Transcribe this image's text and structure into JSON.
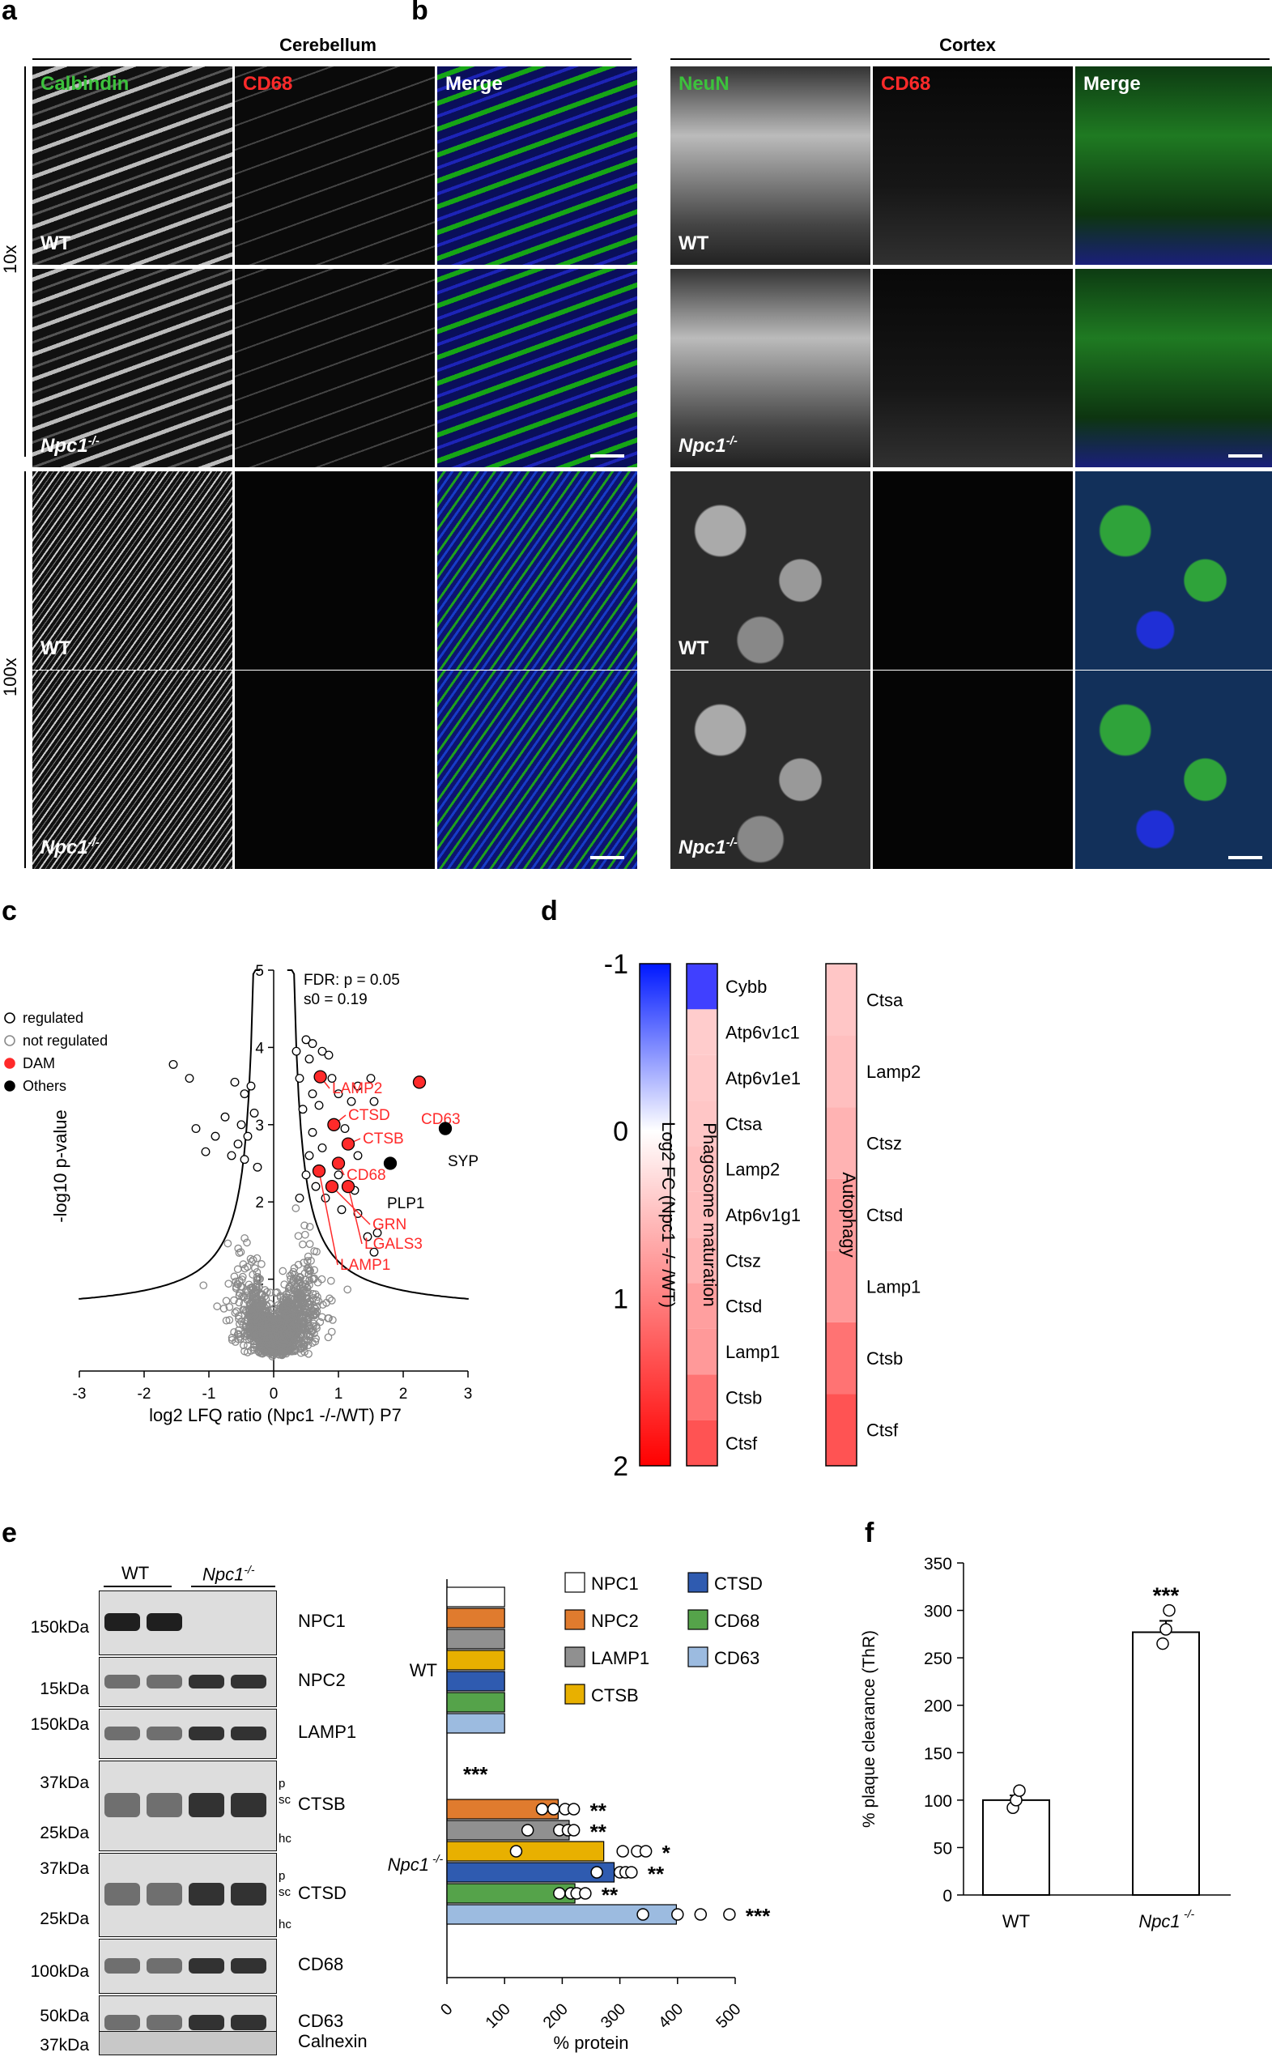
{
  "panel_labels": {
    "a": "a",
    "b": "b",
    "c": "c",
    "d": "d",
    "e": "e",
    "f": "f"
  },
  "panel_a": {
    "region": "Cerebellum",
    "channels": [
      "Calbindin",
      "CD68",
      "Merge"
    ],
    "magnifications": [
      "10x",
      "100x"
    ],
    "genotypes": [
      "WT",
      "Npc1",
      "-/-"
    ]
  },
  "panel_b": {
    "region": "Cortex",
    "channels": [
      "NeuN",
      "CD68",
      "Merge"
    ]
  },
  "colors": {
    "green": "#3cc23c",
    "red": "#ff2a2a",
    "blue": "#1f2fd6",
    "grey_point": "#8a8a8a",
    "npc2": "#e07b2e",
    "lamp1": "#909090",
    "ctsb": "#e8b000",
    "ctsd": "#2f5bb0",
    "cd68": "#55a34a",
    "cd63": "#9cbbe0",
    "npc1": "#ffffff"
  },
  "panel_c": {
    "chart_data": {
      "type": "scatter",
      "xlabel": "log2 LFQ ratio (Npc1 -/-/WT) P7",
      "ylabel": "-log10 p-value",
      "xticks": [
        -3,
        -2,
        -1,
        0,
        1,
        2,
        3
      ],
      "yticks": [
        1,
        2,
        3,
        4,
        5
      ],
      "xlim": [
        -3,
        3
      ],
      "ylim": [
        0,
        5
      ],
      "annotations": [
        "FDR: p = 0.05",
        "s0 = 0.19"
      ],
      "legend": [
        "regulated",
        "not regulated",
        "DAM",
        "Others"
      ],
      "labeled_points": [
        {
          "name": "LAMP2",
          "x": 0.72,
          "y": 3.62,
          "group": "DAM"
        },
        {
          "name": "CTSD",
          "x": 0.93,
          "y": 3.0,
          "group": "DAM"
        },
        {
          "name": "CTSB",
          "x": 1.15,
          "y": 2.75,
          "group": "DAM"
        },
        {
          "name": "CD63",
          "x": 2.25,
          "y": 3.55,
          "group": "DAM"
        },
        {
          "name": "CD68",
          "x": 1.0,
          "y": 2.5,
          "group": "DAM"
        },
        {
          "name": "GRN",
          "x": 0.9,
          "y": 2.2,
          "group": "DAM"
        },
        {
          "name": "LGALS3",
          "x": 1.15,
          "y": 2.2,
          "group": "DAM"
        },
        {
          "name": "LAMP1",
          "x": 0.7,
          "y": 2.4,
          "group": "DAM"
        },
        {
          "name": "SYP",
          "x": 2.65,
          "y": 2.95,
          "group": "Others"
        },
        {
          "name": "PLP1",
          "x": 1.8,
          "y": 2.5,
          "group": "Others"
        }
      ],
      "regulated_points": [
        {
          "x": -1.55,
          "y": 3.78
        },
        {
          "x": -1.3,
          "y": 3.6
        },
        {
          "x": -0.6,
          "y": 3.55
        },
        {
          "x": -0.45,
          "y": 3.4
        },
        {
          "x": -0.35,
          "y": 3.5
        },
        {
          "x": -1.2,
          "y": 2.95
        },
        {
          "x": -0.9,
          "y": 2.85
        },
        {
          "x": -0.75,
          "y": 3.1
        },
        {
          "x": -1.05,
          "y": 2.65
        },
        {
          "x": -0.65,
          "y": 2.6
        },
        {
          "x": -0.55,
          "y": 2.75
        },
        {
          "x": -0.45,
          "y": 2.55
        },
        {
          "x": -0.4,
          "y": 2.85
        },
        {
          "x": -0.3,
          "y": 3.15
        },
        {
          "x": -0.5,
          "y": 3.0
        },
        {
          "x": -0.25,
          "y": 2.45
        },
        {
          "x": 0.35,
          "y": 3.95
        },
        {
          "x": 0.5,
          "y": 4.1
        },
        {
          "x": 0.6,
          "y": 4.05
        },
        {
          "x": 0.55,
          "y": 3.85
        },
        {
          "x": 0.75,
          "y": 3.95
        },
        {
          "x": 0.85,
          "y": 3.9
        },
        {
          "x": 0.4,
          "y": 3.6
        },
        {
          "x": 0.6,
          "y": 3.4
        },
        {
          "x": 0.7,
          "y": 3.25
        },
        {
          "x": 0.45,
          "y": 3.2
        },
        {
          "x": 1.2,
          "y": 3.3
        },
        {
          "x": 1.3,
          "y": 3.5
        },
        {
          "x": 1.5,
          "y": 3.6
        },
        {
          "x": 1.55,
          "y": 3.3
        },
        {
          "x": 1.0,
          "y": 3.4
        },
        {
          "x": 0.9,
          "y": 3.6
        },
        {
          "x": 0.6,
          "y": 2.9
        },
        {
          "x": 0.75,
          "y": 2.7
        },
        {
          "x": 1.1,
          "y": 2.95
        },
        {
          "x": 1.3,
          "y": 2.6
        },
        {
          "x": 0.55,
          "y": 2.6
        },
        {
          "x": 0.65,
          "y": 2.2
        },
        {
          "x": 0.8,
          "y": 2.05
        },
        {
          "x": 1.05,
          "y": 1.9
        },
        {
          "x": 1.3,
          "y": 1.85
        },
        {
          "x": 1.45,
          "y": 1.55
        },
        {
          "x": 1.6,
          "y": 1.6
        },
        {
          "x": 1.55,
          "y": 1.35
        },
        {
          "x": 0.5,
          "y": 2.35
        },
        {
          "x": 0.4,
          "y": 2.05
        },
        {
          "x": 1.25,
          "y": 2.15
        },
        {
          "x": 1.0,
          "y": 2.35
        }
      ],
      "bg_points": {
        "count": 1500
      }
    }
  },
  "panel_d": {
    "chart_data": {
      "type": "heatmap",
      "colorbar_title": "Log2 FC (Npc1 -/- /WT)",
      "colorbar_ticks": [
        -1,
        0,
        1,
        2
      ],
      "colorbar_range": [
        -1,
        2
      ],
      "columns": [
        {
          "title": "Phagosome maturation",
          "genes": [
            "Cybb",
            "Atp6v1c1",
            "Atp6v1e1",
            "Ctsa",
            "Lamp2",
            "Atp6v1g1",
            "Ctsz",
            "Ctsd",
            "Lamp1",
            "Ctsb",
            "Ctsf"
          ],
          "values": [
            -0.85,
            0.4,
            0.42,
            0.45,
            0.5,
            0.52,
            0.6,
            0.75,
            0.8,
            1.1,
            1.35
          ]
        },
        {
          "title": "Autophagy",
          "genes": [
            "Ctsa",
            "Lamp2",
            "Ctsz",
            "Ctsd",
            "Lamp1",
            "Ctsb",
            "Ctsf"
          ],
          "values": [
            0.45,
            0.5,
            0.6,
            0.75,
            0.8,
            1.1,
            1.35
          ]
        }
      ]
    }
  },
  "panel_e": {
    "blot": {
      "groups": [
        "WT",
        "Npc1",
        "-/-"
      ],
      "rows": [
        {
          "protein": "NPC1",
          "mw": [
            "150kDa"
          ]
        },
        {
          "protein": "NPC2",
          "mw": [
            "15kDa"
          ]
        },
        {
          "protein": "LAMP1",
          "mw": [
            "150kDa"
          ]
        },
        {
          "protein": "CTSB",
          "mw": [
            "37kDa",
            "25kDa"
          ],
          "forms": [
            "p",
            "sc",
            "hc"
          ]
        },
        {
          "protein": "CTSD",
          "mw": [
            "37kDa",
            "25kDa"
          ],
          "forms": [
            "p",
            "sc",
            "hc"
          ]
        },
        {
          "protein": "CD68",
          "mw": [
            "100kDa"
          ]
        },
        {
          "protein": "CD63",
          "mw": [
            "50kDa",
            "37kDa"
          ]
        },
        {
          "protein": "Calnexin",
          "mw": []
        }
      ]
    },
    "chart_data": {
      "type": "bar",
      "orientation": "horizontal",
      "xlabel": "% protein",
      "xticks": [
        0,
        100,
        200,
        300,
        400,
        500
      ],
      "xlim": [
        0,
        500
      ],
      "groups": [
        "WT",
        "Npc1 -/-"
      ],
      "series": [
        {
          "name": "NPC1",
          "wt": 100,
          "npc1": 0,
          "sig": "***",
          "points": []
        },
        {
          "name": "NPC2",
          "wt": 100,
          "npc1": 193,
          "sig": "**",
          "points": [
            165,
            185,
            205,
            220
          ]
        },
        {
          "name": "LAMP1",
          "wt": 100,
          "npc1": 212,
          "sig": "**",
          "points": [
            140,
            195,
            210,
            220
          ]
        },
        {
          "name": "CTSB",
          "wt": 100,
          "npc1": 272,
          "sig": "*",
          "points": [
            120,
            305,
            330,
            345
          ]
        },
        {
          "name": "CTSD",
          "wt": 100,
          "npc1": 290,
          "sig": "**",
          "points": [
            260,
            300,
            310,
            320
          ]
        },
        {
          "name": "CD68",
          "wt": 100,
          "npc1": 222,
          "sig": "**",
          "points": [
            195,
            215,
            225,
            240
          ]
        },
        {
          "name": "CD63",
          "wt": 100,
          "npc1": 398,
          "sig": "***",
          "points": [
            340,
            400,
            440,
            490
          ]
        }
      ]
    }
  },
  "panel_f": {
    "chart_data": {
      "type": "bar",
      "ylabel": "% plaque clearance (ThR)",
      "yticks": [
        0,
        50,
        100,
        150,
        200,
        250,
        300,
        350
      ],
      "ylim": [
        0,
        350
      ],
      "categories": [
        "WT",
        "Npc1 -/-"
      ],
      "values": [
        100,
        277
      ],
      "errors": [
        5,
        12
      ],
      "points": [
        [
          92,
          100,
          110
        ],
        [
          265,
          280,
          300
        ]
      ],
      "significance": [
        "",
        "***"
      ]
    }
  }
}
